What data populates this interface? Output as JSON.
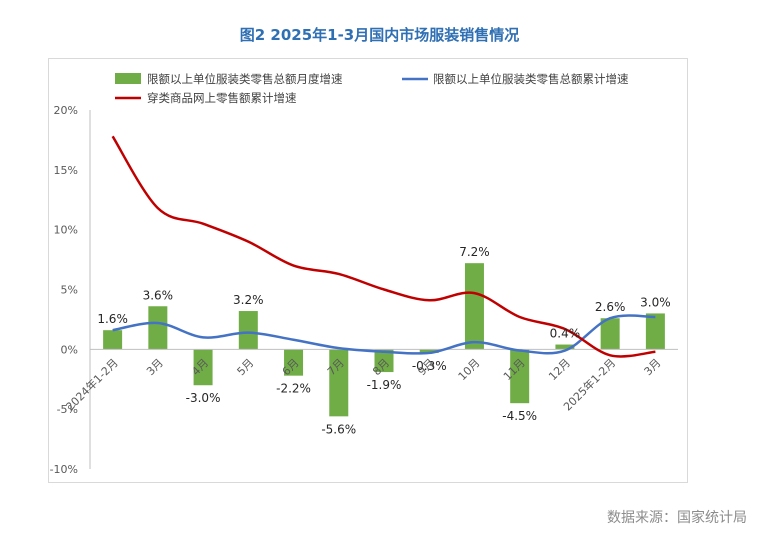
{
  "title": "图2 2025年1-3月国内市场服装销售情况",
  "source": "数据来源：国家统计局",
  "chart_data": {
    "type": "bar",
    "categories": [
      "2024年1-2月",
      "3月",
      "4月",
      "5月",
      "6月",
      "7月",
      "8月",
      "9月",
      "10月",
      "11月",
      "12月",
      "2025年1-2月",
      "3月"
    ],
    "series": [
      {
        "name": "限额以上单位服装类零售总额月度增速",
        "type": "bar",
        "color": "#70ad47",
        "values": [
          1.6,
          3.6,
          -3.0,
          3.2,
          -2.2,
          -5.6,
          -1.9,
          -0.3,
          7.2,
          -4.5,
          0.4,
          2.6,
          3.0
        ],
        "labels": [
          "1.6%",
          "3.6%",
          "-3.0%",
          "3.2%",
          "-2.2%",
          "-5.6%",
          "-1.9%",
          "-0.3%",
          "7.2%",
          "-4.5%",
          "0.4%",
          "2.6%",
          "3.0%"
        ]
      },
      {
        "name": "限额以上单位服装类零售总额累计增速",
        "type": "line",
        "color": "#4472c4",
        "values": [
          1.6,
          2.2,
          1.0,
          1.4,
          0.8,
          0.1,
          -0.2,
          -0.3,
          0.6,
          -0.1,
          -0.1,
          2.6,
          2.7
        ]
      },
      {
        "name": "穿类商品网上零售额累计增速",
        "type": "line",
        "color": "#c00000",
        "values": [
          17.8,
          11.8,
          10.5,
          9.0,
          7.0,
          6.3,
          5.0,
          4.1,
          4.7,
          2.7,
          1.7,
          -0.5,
          -0.2
        ]
      }
    ],
    "yticks": [
      "20%",
      "15%",
      "10%",
      "5%",
      "0%",
      "-5%",
      "-10%"
    ],
    "ylim": [
      -10,
      20
    ],
    "grid": false,
    "legend": "top"
  }
}
